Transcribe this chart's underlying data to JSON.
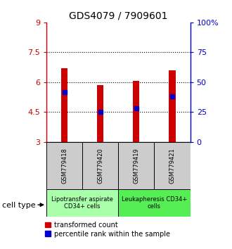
{
  "title": "GDS4079 / 7909601",
  "samples": [
    "GSM779418",
    "GSM779420",
    "GSM779419",
    "GSM779421"
  ],
  "bar_bottom": 3.0,
  "bar_tops": [
    6.7,
    5.85,
    6.05,
    6.6
  ],
  "percentile_values": [
    5.5,
    4.5,
    4.7,
    5.3
  ],
  "ylim_left": [
    3,
    9
  ],
  "yticks_left": [
    3,
    4.5,
    6,
    7.5,
    9
  ],
  "ytick_labels_left": [
    "3",
    "4.5",
    "6",
    "7.5",
    "9"
  ],
  "yticks_right": [
    0,
    25,
    50,
    75,
    100
  ],
  "ytick_labels_right": [
    "0",
    "25",
    "50",
    "75",
    "100%"
  ],
  "dotted_lines": [
    4.5,
    6.0,
    7.5
  ],
  "bar_color": "#cc0000",
  "percentile_color": "#0000cc",
  "bar_width": 0.18,
  "cell_types": [
    {
      "label": "Lipotransfer aspirate\nCD34+ cells",
      "samples": [
        0,
        1
      ],
      "color": "#aaffaa"
    },
    {
      "label": "Leukapheresis CD34+\ncells",
      "samples": [
        2,
        3
      ],
      "color": "#55ee55"
    }
  ],
  "cell_type_label": "cell type",
  "legend_red_label": "transformed count",
  "legend_blue_label": "percentile rank within the sample",
  "left_axis_color": "#cc0000",
  "right_axis_color": "#0000cc",
  "background_color": "#ffffff",
  "sample_box_color": "#cccccc"
}
